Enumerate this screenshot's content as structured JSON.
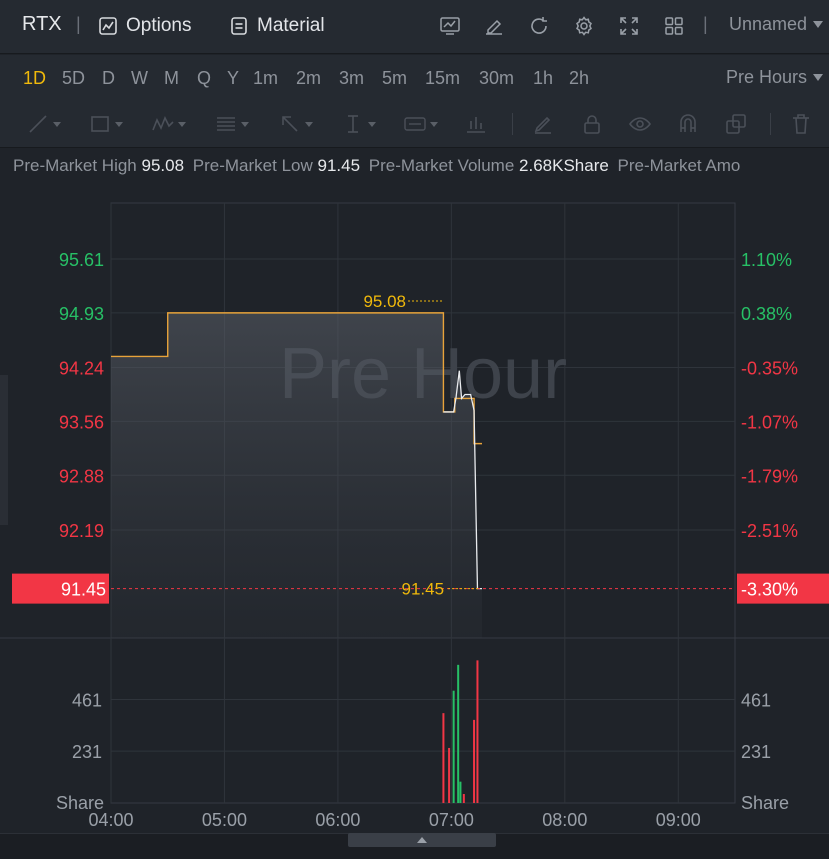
{
  "header": {
    "ticker": "RTX",
    "options_label": "Options",
    "material_label": "Material",
    "layout_name": "Unnamed"
  },
  "periods": {
    "items": [
      "1D",
      "5D",
      "D",
      "W",
      "M",
      "Q",
      "Y",
      "1m",
      "2m",
      "3m",
      "5m",
      "15m",
      "30m",
      "1h",
      "2h"
    ],
    "active": "1D",
    "session_label": "Pre Hours"
  },
  "infobar": {
    "high_label": "Pre-Market High",
    "high_value": "95.08",
    "low_label": "Pre-Market Low",
    "low_value": "91.45",
    "volume_label": "Pre-Market Volume",
    "volume_value": "2.68KShare",
    "amount_label": "Pre-Market Amo"
  },
  "colors": {
    "up": "#27c066",
    "down": "#f23645",
    "price_line": "#f0b90b",
    "avg_line": "#e8a33a",
    "background": "#1f2329"
  },
  "chart_data": {
    "type": "line",
    "watermark": "Pre Hour",
    "x_ticks": [
      "04:00",
      "05:00",
      "06:00",
      "07:00",
      "08:00",
      "09:00"
    ],
    "x_range_hours": [
      4.0,
      9.5
    ],
    "price_axis": {
      "left_ticks": [
        "95.61",
        "94.93",
        "94.24",
        "93.56",
        "92.88",
        "92.19"
      ],
      "right_ticks": [
        "1.10%",
        "0.38%",
        "-0.35%",
        "-1.07%",
        "-1.79%",
        "-2.51%"
      ],
      "tick_values": [
        95.61,
        94.93,
        94.24,
        93.56,
        92.88,
        92.19
      ],
      "ylim": [
        91.2,
        96.3
      ],
      "up_count": 2
    },
    "current": {
      "price": 91.45,
      "price_label": "91.45",
      "pct_label": "-3.30%"
    },
    "high_marker": {
      "price": 95.08,
      "label": "95.08",
      "time": 6.9
    },
    "low_marker": {
      "price": 91.45,
      "label": "91.45",
      "time": 7.2
    },
    "avg_series": {
      "name": "",
      "x": [
        4.0,
        4.5,
        4.5,
        6.93,
        6.93,
        7.03,
        7.03,
        7.2,
        7.2,
        7.27
      ],
      "y": [
        94.38,
        94.38,
        94.93,
        94.93,
        93.68,
        93.68,
        93.85,
        93.85,
        93.28,
        93.28
      ]
    },
    "price_series": {
      "name": "",
      "x": [
        4.0,
        4.5,
        4.5,
        6.93,
        6.93,
        7.02,
        7.04,
        7.07,
        7.09,
        7.12,
        7.17,
        7.2,
        7.23,
        7.27
      ],
      "y": [
        94.38,
        94.38,
        94.93,
        94.93,
        93.68,
        93.68,
        93.85,
        94.2,
        93.85,
        93.9,
        93.9,
        93.7,
        91.45,
        91.45
      ]
    },
    "volume": {
      "axis_ticks": [
        "461",
        "231"
      ],
      "tick_values": [
        461,
        231
      ],
      "unit_label": "Share",
      "ylim": [
        0,
        690
      ],
      "bars": [
        {
          "time": 6.93,
          "value": 400,
          "dir": "down"
        },
        {
          "time": 6.98,
          "value": 245,
          "dir": "down"
        },
        {
          "time": 7.02,
          "value": 500,
          "dir": "up"
        },
        {
          "time": 7.06,
          "value": 615,
          "dir": "up"
        },
        {
          "time": 7.08,
          "value": 95,
          "dir": "up"
        },
        {
          "time": 7.11,
          "value": 40,
          "dir": "down"
        },
        {
          "time": 7.2,
          "value": 370,
          "dir": "down"
        },
        {
          "time": 7.23,
          "value": 635,
          "dir": "down"
        }
      ]
    }
  }
}
